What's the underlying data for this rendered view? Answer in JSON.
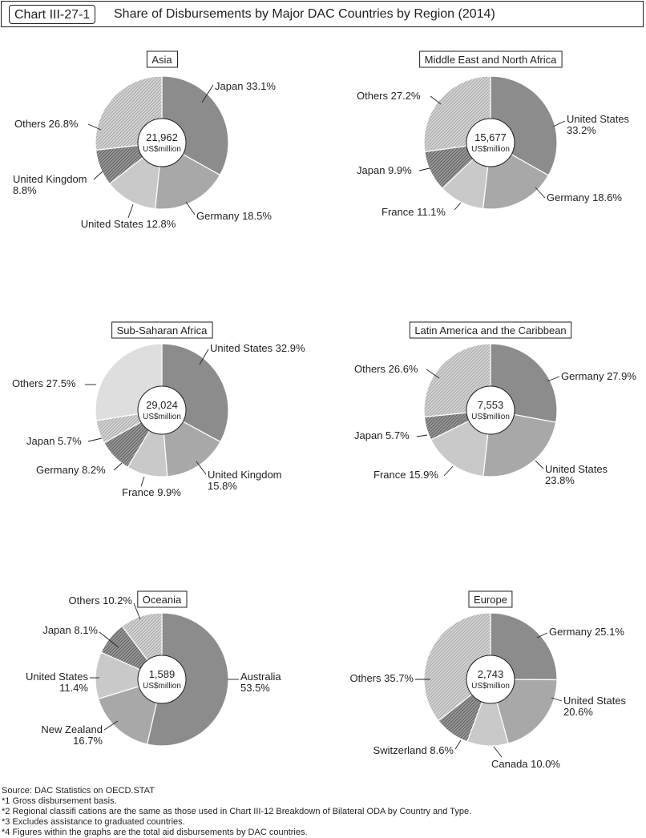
{
  "header": {
    "chart_id": "Chart III-27-1",
    "title": "Share of Disbursements by Major DAC Countries by Region (2014)"
  },
  "colors": {
    "dark": "#8c8c8c",
    "mid": "#a8a8a8",
    "light": "#c9c9c9",
    "pale": "#dedede",
    "hatch_dark": "#7a7a7a",
    "hatch_light": "#c4c4c4"
  },
  "chart_data": [
    {
      "type": "pie",
      "title": "Asia",
      "center_value": "21,962",
      "center_unit": "US$million",
      "slices": [
        {
          "label": "Japan",
          "value": 33.1,
          "text": "Japan 33.1%",
          "fill": "dark"
        },
        {
          "label": "Germany",
          "value": 18.5,
          "text": "Germany 18.5%",
          "fill": "mid"
        },
        {
          "label": "United States",
          "value": 12.8,
          "text": "United States 12.8%",
          "fill": "light"
        },
        {
          "label": "United Kingdom",
          "value": 8.8,
          "text": "United Kingdom\n8.8%",
          "fill": "hatch_dark"
        },
        {
          "label": "Others",
          "value": 26.8,
          "text": "Others 26.8%",
          "fill": "hatch_light"
        }
      ]
    },
    {
      "type": "pie",
      "title": "Middle East and North Africa",
      "center_value": "15,677",
      "center_unit": "US$million",
      "slices": [
        {
          "label": "United States",
          "value": 33.2,
          "text": "United States\n33.2%",
          "fill": "dark"
        },
        {
          "label": "Germany",
          "value": 18.6,
          "text": "Germany 18.6%",
          "fill": "mid"
        },
        {
          "label": "France",
          "value": 11.1,
          "text": "France 11.1%",
          "fill": "light"
        },
        {
          "label": "Japan",
          "value": 9.9,
          "text": "Japan 9.9%",
          "fill": "hatch_dark"
        },
        {
          "label": "Others",
          "value": 27.2,
          "text": "Others 27.2%",
          "fill": "hatch_light"
        }
      ]
    },
    {
      "type": "pie",
      "title": "Sub-Saharan Africa",
      "center_value": "29,024",
      "center_unit": "US$million",
      "slices": [
        {
          "label": "United States",
          "value": 32.9,
          "text": "United States 32.9%",
          "fill": "dark"
        },
        {
          "label": "United Kingdom",
          "value": 15.8,
          "text": "United Kingdom\n15.8%",
          "fill": "mid"
        },
        {
          "label": "France",
          "value": 9.9,
          "text": "France 9.9%",
          "fill": "light"
        },
        {
          "label": "Germany",
          "value": 8.2,
          "text": "Germany 8.2%",
          "fill": "hatch_dark"
        },
        {
          "label": "Japan",
          "value": 5.7,
          "text": "Japan 5.7%",
          "fill": "hatch_light"
        },
        {
          "label": "Others",
          "value": 27.5,
          "text": "Others 27.5%",
          "fill": "pale"
        }
      ]
    },
    {
      "type": "pie",
      "title": "Latin America and the Caribbean",
      "center_value": "7,553",
      "center_unit": "US$million",
      "slices": [
        {
          "label": "Germany",
          "value": 27.9,
          "text": "Germany 27.9%",
          "fill": "dark"
        },
        {
          "label": "United States",
          "value": 23.8,
          "text": "United States\n23.8%",
          "fill": "mid"
        },
        {
          "label": "France",
          "value": 15.9,
          "text": "France 15.9%",
          "fill": "light"
        },
        {
          "label": "Japan",
          "value": 5.7,
          "text": "Japan 5.7%",
          "fill": "hatch_dark"
        },
        {
          "label": "Others",
          "value": 26.6,
          "text": "Others 26.6%",
          "fill": "hatch_light"
        }
      ]
    },
    {
      "type": "pie",
      "title": "Oceania",
      "center_value": "1,589",
      "center_unit": "US$million",
      "slices": [
        {
          "label": "Australia",
          "value": 53.5,
          "text": "Australia\n53.5%",
          "fill": "dark"
        },
        {
          "label": "New Zealand",
          "value": 16.7,
          "text": "New Zealand\n16.7%",
          "fill": "mid"
        },
        {
          "label": "United States",
          "value": 11.4,
          "text": "United States\n11.4%",
          "fill": "light"
        },
        {
          "label": "Japan",
          "value": 8.1,
          "text": "Japan 8.1%",
          "fill": "hatch_dark"
        },
        {
          "label": "Others",
          "value": 10.2,
          "text": "Others 10.2%",
          "fill": "hatch_light"
        }
      ]
    },
    {
      "type": "pie",
      "title": "Europe",
      "center_value": "2,743",
      "center_unit": "US$million",
      "slices": [
        {
          "label": "Germany",
          "value": 25.1,
          "text": "Germany 25.1%",
          "fill": "dark"
        },
        {
          "label": "United States",
          "value": 20.6,
          "text": "United States\n20.6%",
          "fill": "mid"
        },
        {
          "label": "Canada",
          "value": 10.0,
          "text": "Canada 10.0%",
          "fill": "light"
        },
        {
          "label": "Switzerland",
          "value": 8.6,
          "text": "Switzerland 8.6%",
          "fill": "hatch_dark"
        },
        {
          "label": "Others",
          "value": 35.7,
          "text": "Others 35.7%",
          "fill": "hatch_light"
        }
      ]
    }
  ],
  "notes": {
    "source": "Source: DAC Statistics on OECD.STAT",
    "n1": "*1  Gross disbursement basis.",
    "n2": "*2  Regional classifi cations are the same as those used in Chart III-12 Breakdown of Bilateral ODA by Country and Type.",
    "n3": "*3  Excludes assistance to graduated countries.",
    "n4": "*4  Figures within the graphs are the total aid disbursements by DAC countries."
  }
}
